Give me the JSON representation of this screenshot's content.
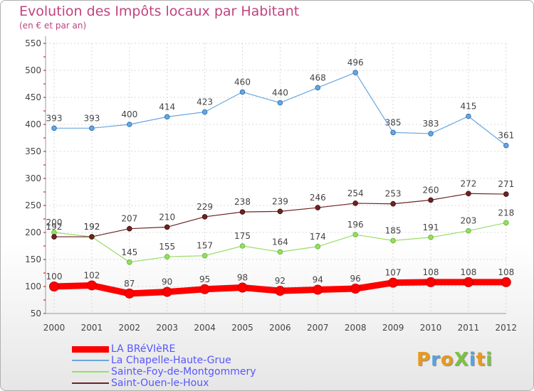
{
  "header": {
    "title": "Evolution des Impôts locaux par Habitant",
    "subtitle": "(en € et par an)"
  },
  "logo": {
    "text": "ProXiti"
  },
  "chart_data": {
    "type": "line",
    "x": [
      "2000",
      "2001",
      "2002",
      "2003",
      "2004",
      "2005",
      "2006",
      "2007",
      "2008",
      "2009",
      "2010",
      "2011",
      "2012"
    ],
    "ylim": [
      50,
      550
    ],
    "yticks": [
      50,
      100,
      150,
      200,
      250,
      300,
      350,
      400,
      450,
      500,
      550
    ],
    "grid": true,
    "legend_position": "bottom-left",
    "series": [
      {
        "name": "LA BRéVIèRE",
        "color": "#ff0000",
        "width": 9,
        "values": [
          100,
          102,
          87,
          90,
          95,
          98,
          92,
          94,
          96,
          107,
          108,
          108,
          108
        ]
      },
      {
        "name": "La Chapelle-Haute-Grue",
        "color": "#6aa7dd",
        "width": 1.2,
        "values": [
          393,
          393,
          400,
          414,
          423,
          460,
          440,
          468,
          496,
          385,
          383,
          415,
          361
        ]
      },
      {
        "name": "Sainte-Foy-de-Montgommery",
        "color": "#99dd66",
        "width": 1.2,
        "values": [
          200,
          192,
          145,
          155,
          157,
          175,
          164,
          174,
          196,
          185,
          191,
          203,
          218
        ]
      },
      {
        "name": "Saint-Ouen-le-Houx",
        "color": "#6e2424",
        "width": 1.2,
        "values": [
          192,
          192,
          207,
          210,
          229,
          238,
          239,
          246,
          254,
          253,
          260,
          272,
          271
        ]
      }
    ],
    "labels_drawn_order": [
      2,
      3,
      1,
      0
    ]
  }
}
